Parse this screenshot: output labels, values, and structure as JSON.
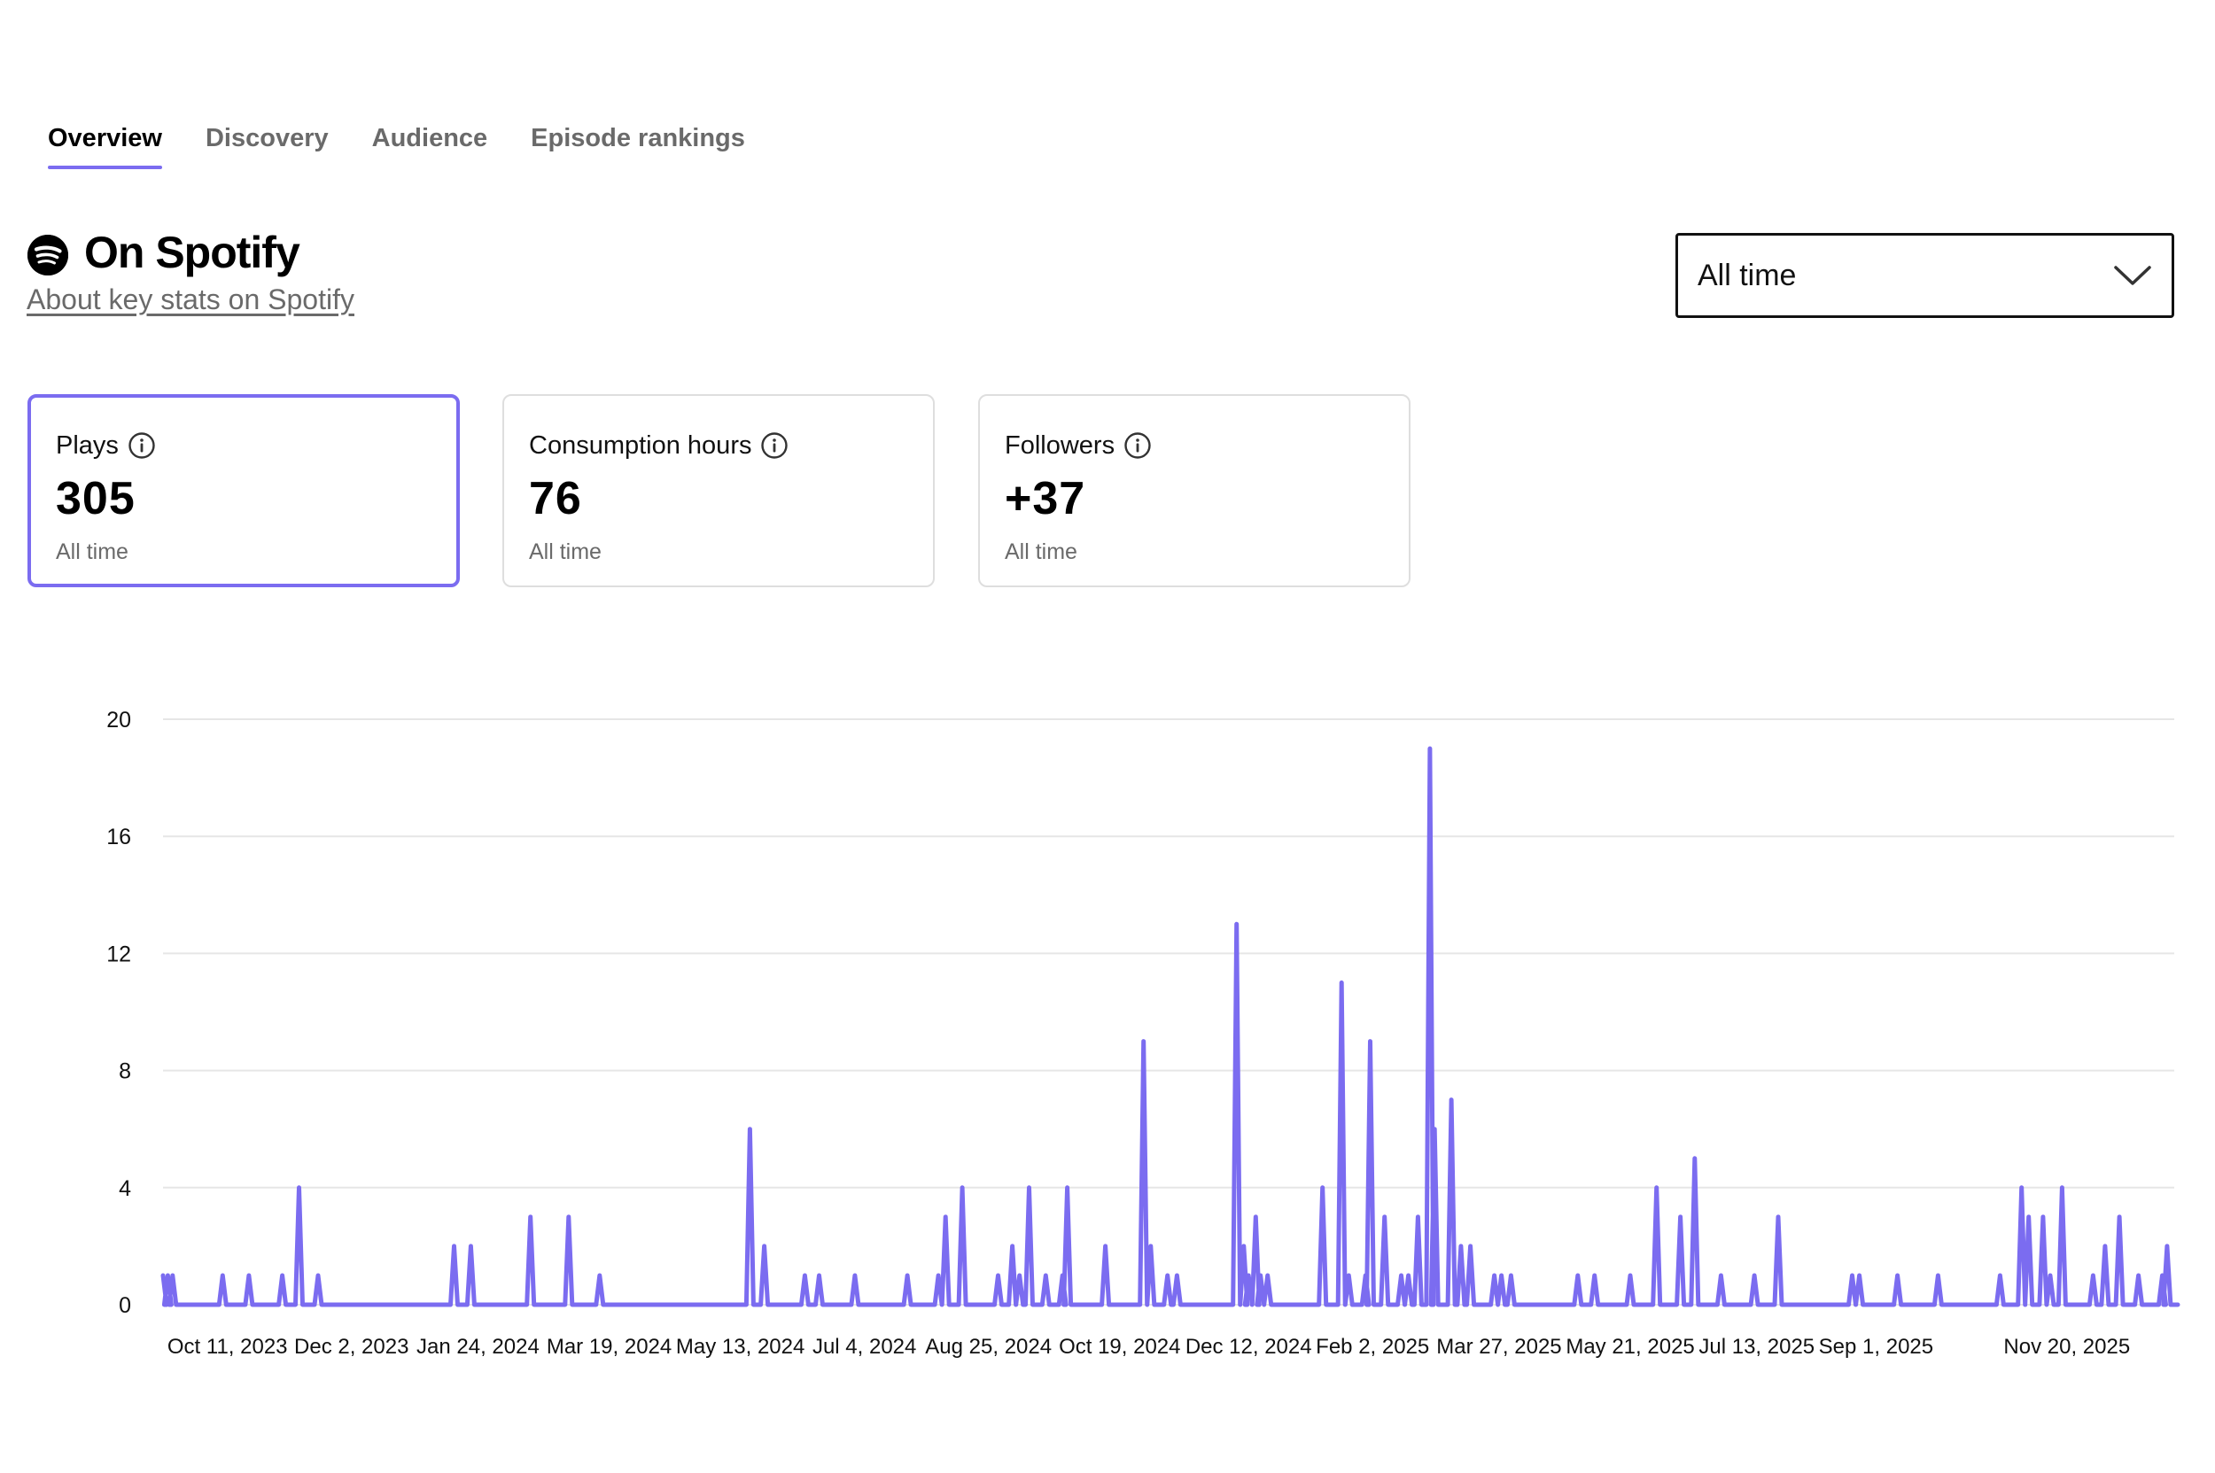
{
  "tabs": [
    {
      "label": "Overview",
      "active": true
    },
    {
      "label": "Discovery",
      "active": false
    },
    {
      "label": "Audience",
      "active": false
    },
    {
      "label": "Episode rankings",
      "active": false
    }
  ],
  "header": {
    "logo_icon": "spotify-logo-icon",
    "title": "On Spotify",
    "about_link": "About key stats on Spotify"
  },
  "range_select": {
    "value": "All time",
    "icon": "chevron-down-icon"
  },
  "cards": [
    {
      "label": "Plays",
      "value": "305",
      "sub": "All time",
      "selected": true,
      "icon": "info-icon"
    },
    {
      "label": "Consumption hours",
      "value": "76",
      "sub": "All time",
      "selected": false,
      "icon": "info-icon"
    },
    {
      "label": "Followers",
      "value": "+37",
      "sub": "All time",
      "selected": false,
      "icon": "info-icon"
    }
  ],
  "colors": {
    "accent": "#7b6cf0",
    "text": "#000000",
    "muted": "#6a6a6a",
    "grid": "#e6e6e6"
  },
  "chart_data": {
    "type": "line",
    "title": "",
    "xlabel": "",
    "ylabel": "",
    "ylim": [
      0,
      20
    ],
    "y_ticks": [
      0,
      4,
      8,
      12,
      16,
      20
    ],
    "x_range": [
      "2023-09-14",
      "2026-01-04"
    ],
    "x_tick_labels": [
      {
        "label": "Oct 11, 2023",
        "date": "2023-10-11"
      },
      {
        "label": "Dec 2, 2023",
        "date": "2023-12-02"
      },
      {
        "label": "Jan 24, 2024",
        "date": "2024-01-24"
      },
      {
        "label": "Mar 19, 2024",
        "date": "2024-03-19"
      },
      {
        "label": "May 13, 2024",
        "date": "2024-05-13"
      },
      {
        "label": "Jul 4, 2024",
        "date": "2024-07-04"
      },
      {
        "label": "Aug 25, 2024",
        "date": "2024-08-25"
      },
      {
        "label": "Oct 19, 2024",
        "date": "2024-10-19"
      },
      {
        "label": "Dec 12, 2024",
        "date": "2024-12-12"
      },
      {
        "label": "Feb 2, 2025",
        "date": "2025-02-02"
      },
      {
        "label": "Mar 27, 2025",
        "date": "2025-03-27"
      },
      {
        "label": "May 21, 2025",
        "date": "2025-05-21"
      },
      {
        "label": "Jul 13, 2025",
        "date": "2025-07-13"
      },
      {
        "label": "Sep 1, 2025",
        "date": "2025-09-01"
      },
      {
        "label": "Nov 20, 2025",
        "date": "2025-11-20"
      }
    ],
    "grid": true,
    "legend": "none",
    "series": [
      {
        "color": "#7b6cf0",
        "points": [
          [
            "2023-09-14",
            1
          ],
          [
            "2023-09-16",
            1
          ],
          [
            "2023-09-18",
            1
          ],
          [
            "2023-10-09",
            1
          ],
          [
            "2023-10-20",
            1
          ],
          [
            "2023-11-03",
            1
          ],
          [
            "2023-11-10",
            4
          ],
          [
            "2023-11-18",
            1
          ],
          [
            "2024-01-14",
            2
          ],
          [
            "2024-01-21",
            2
          ],
          [
            "2024-02-15",
            3
          ],
          [
            "2024-03-02",
            3
          ],
          [
            "2024-03-15",
            1
          ],
          [
            "2024-05-17",
            6
          ],
          [
            "2024-05-23",
            2
          ],
          [
            "2024-06-09",
            1
          ],
          [
            "2024-06-15",
            1
          ],
          [
            "2024-06-30",
            1
          ],
          [
            "2024-07-22",
            1
          ],
          [
            "2024-08-04",
            1
          ],
          [
            "2024-08-07",
            3
          ],
          [
            "2024-08-14",
            4
          ],
          [
            "2024-08-29",
            1
          ],
          [
            "2024-09-04",
            2
          ],
          [
            "2024-09-07",
            1
          ],
          [
            "2024-09-11",
            4
          ],
          [
            "2024-09-18",
            1
          ],
          [
            "2024-09-25",
            1
          ],
          [
            "2024-09-27",
            4
          ],
          [
            "2024-10-13",
            2
          ],
          [
            "2024-10-29",
            9
          ],
          [
            "2024-11-01",
            2
          ],
          [
            "2024-11-08",
            1
          ],
          [
            "2024-11-12",
            1
          ],
          [
            "2024-12-07",
            13
          ],
          [
            "2024-12-10",
            2
          ],
          [
            "2024-12-12",
            1
          ],
          [
            "2024-12-15",
            3
          ],
          [
            "2024-12-17",
            1
          ],
          [
            "2024-12-20",
            1
          ],
          [
            "2025-01-12",
            4
          ],
          [
            "2025-01-20",
            11
          ],
          [
            "2025-01-23",
            1
          ],
          [
            "2025-01-30",
            1
          ],
          [
            "2025-02-01",
            9
          ],
          [
            "2025-02-07",
            3
          ],
          [
            "2025-02-14",
            1
          ],
          [
            "2025-02-17",
            1
          ],
          [
            "2025-02-21",
            3
          ],
          [
            "2025-02-26",
            19
          ],
          [
            "2025-02-28",
            6
          ],
          [
            "2025-03-07",
            7
          ],
          [
            "2025-03-11",
            2
          ],
          [
            "2025-03-15",
            2
          ],
          [
            "2025-03-25",
            1
          ],
          [
            "2025-03-28",
            1
          ],
          [
            "2025-04-01",
            1
          ],
          [
            "2025-04-29",
            1
          ],
          [
            "2025-05-06",
            1
          ],
          [
            "2025-05-21",
            1
          ],
          [
            "2025-06-01",
            4
          ],
          [
            "2025-06-11",
            3
          ],
          [
            "2025-06-17",
            5
          ],
          [
            "2025-06-28",
            1
          ],
          [
            "2025-07-12",
            1
          ],
          [
            "2025-07-22",
            3
          ],
          [
            "2025-08-22",
            1
          ],
          [
            "2025-08-25",
            1
          ],
          [
            "2025-09-10",
            1
          ],
          [
            "2025-09-27",
            1
          ],
          [
            "2025-10-23",
            1
          ],
          [
            "2025-11-01",
            4
          ],
          [
            "2025-11-04",
            3
          ],
          [
            "2025-11-10",
            3
          ],
          [
            "2025-11-13",
            1
          ],
          [
            "2025-11-18",
            4
          ],
          [
            "2025-12-01",
            1
          ],
          [
            "2025-12-06",
            2
          ],
          [
            "2025-12-12",
            3
          ],
          [
            "2025-12-20",
            1
          ],
          [
            "2025-12-30",
            1
          ],
          [
            "2026-01-01",
            2
          ],
          [
            "2026-01-04",
            0
          ]
        ]
      }
    ]
  }
}
